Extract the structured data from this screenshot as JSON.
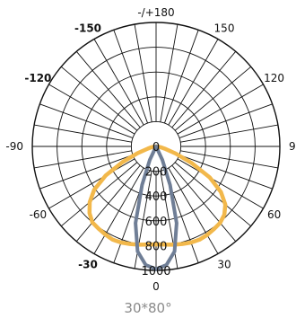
{
  "caption": "30*80°",
  "chart_data": {
    "type": "polar",
    "unit": "",
    "radial_max": 1000,
    "radial_ticks": [
      0,
      200,
      400,
      600,
      800,
      1000
    ],
    "angular_labels": [
      {
        "angle": 0,
        "text": "0"
      },
      {
        "angle": 30,
        "text": "30"
      },
      {
        "angle": -30,
        "text": "-30"
      },
      {
        "angle": 60,
        "text": "60"
      },
      {
        "angle": -60,
        "text": "-60"
      },
      {
        "angle": 90,
        "text": "90"
      },
      {
        "angle": -90,
        "text": "-90"
      },
      {
        "angle": 120,
        "text": "120"
      },
      {
        "angle": -120,
        "text": "-120"
      },
      {
        "angle": 150,
        "text": "150"
      },
      {
        "angle": -150,
        "text": "-150"
      },
      {
        "angle": 180,
        "text": "-/+180"
      }
    ],
    "series": [
      {
        "color": "#f2b84b",
        "angles": [
          -80,
          -75,
          -70,
          -65,
          -60,
          -55,
          -50,
          -45,
          -40,
          -35,
          -30,
          -25,
          -20,
          -15,
          -10,
          -5,
          0,
          5,
          10,
          15,
          20,
          25,
          30,
          35,
          40,
          45,
          50,
          55,
          60,
          65,
          70,
          75,
          80
        ],
        "values": [
          40,
          70,
          160,
          300,
          470,
          610,
          700,
          760,
          800,
          810,
          820,
          830,
          825,
          815,
          805,
          795,
          790,
          795,
          805,
          815,
          825,
          830,
          825,
          815,
          805,
          780,
          730,
          640,
          500,
          320,
          170,
          80,
          40
        ]
      },
      {
        "color": "#6f7e96",
        "angles": [
          -30,
          -25,
          -20,
          -15,
          -10,
          -5,
          0,
          5,
          10,
          15,
          20,
          25,
          30
        ],
        "values": [
          0,
          120,
          330,
          640,
          860,
          960,
          990,
          960,
          860,
          640,
          330,
          120,
          0
        ]
      }
    ]
  }
}
